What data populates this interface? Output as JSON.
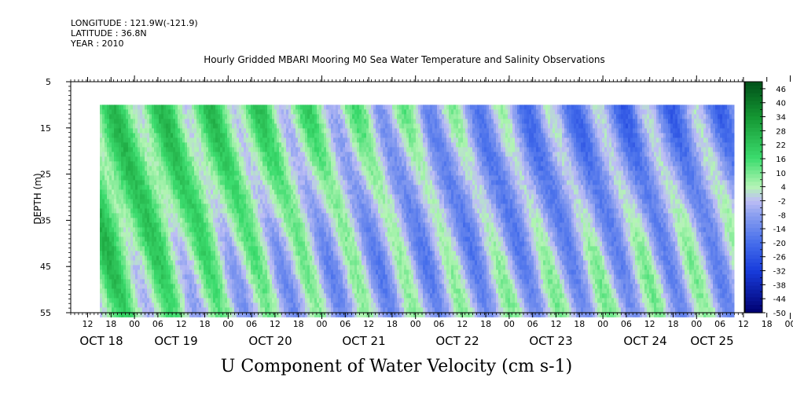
{
  "header": {
    "longitude": "LONGITUDE : 121.9W(-121.9)",
    "latitude": "LATITUDE : 36.8N",
    "year": "YEAR : 2010"
  },
  "chart_data": {
    "type": "heatmap",
    "title": "Hourly Gridded MBARI Mooring M0 Sea Water Temperature and Salinity Observations",
    "xlabel": "U Component of Water Velocity (cm s-1)",
    "ylabel": "DEPTH (m)",
    "y_range": [
      5,
      55
    ],
    "y_inverted": true,
    "y_ticks": [
      5,
      15,
      25,
      35,
      45,
      55
    ],
    "data_depth_range": [
      10,
      55
    ],
    "x_hour_tick_labels": [
      "12",
      "18",
      "00",
      "06",
      "12",
      "18",
      "00",
      "06",
      "12",
      "18",
      "00",
      "06",
      "12",
      "18",
      "00",
      "06",
      "12",
      "18",
      "00",
      "06",
      "12",
      "18",
      "00",
      "06",
      "12",
      "18",
      "00",
      "06",
      "12",
      "18",
      "00",
      "06"
    ],
    "x_day_labels": [
      "OCT 18",
      "OCT 19",
      "OCT 20",
      "OCT 21",
      "OCT 22",
      "OCT 23",
      "OCT 24",
      "OCT 25"
    ],
    "colorbar": {
      "tick_labels": [
        "46",
        "40",
        "34",
        "28",
        "22",
        "16",
        "10",
        "4",
        "-2",
        "-8",
        "-14",
        "-20",
        "-26",
        "-32",
        "-38",
        "-44",
        "-50"
      ],
      "range": [
        -50,
        49
      ]
    }
  }
}
